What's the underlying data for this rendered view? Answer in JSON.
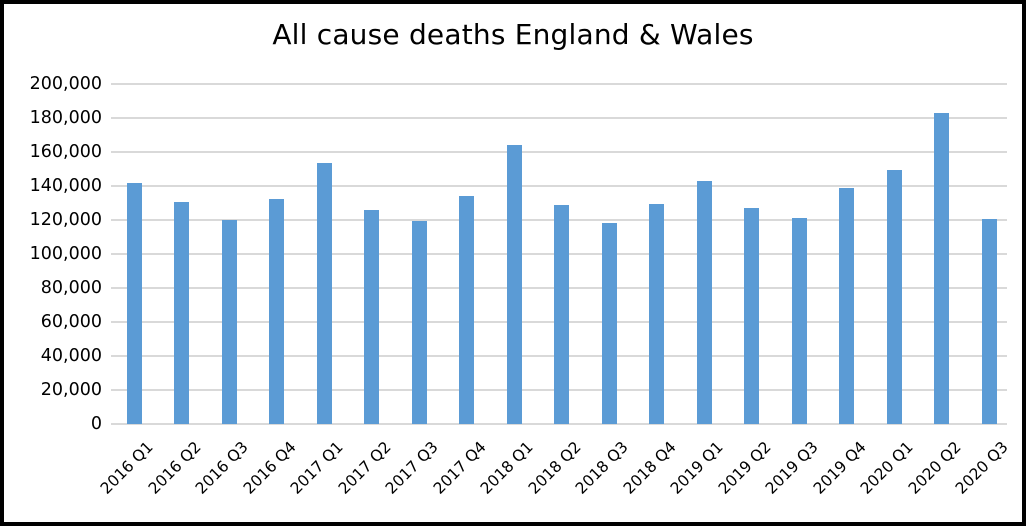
{
  "chart_data": {
    "type": "bar",
    "title": "All cause deaths England & Wales",
    "categories": [
      "2016 Q1",
      "2016 Q2",
      "2016 Q3",
      "2016 Q4",
      "2017 Q1",
      "2017 Q2",
      "2017 Q3",
      "2017 Q4",
      "2018 Q1",
      "2018 Q2",
      "2018 Q3",
      "2018 Q4",
      "2019 Q1",
      "2019 Q2",
      "2019 Q3",
      "2019 Q4",
      "2020 Q1",
      "2020 Q2",
      "2020 Q3"
    ],
    "values": [
      142000,
      130400,
      120000,
      132300,
      153700,
      126000,
      119500,
      134200,
      164200,
      128900,
      118000,
      129700,
      143200,
      126900,
      121100,
      138800,
      149700,
      182700,
      120800
    ],
    "xlabel": "",
    "ylabel": "",
    "ylim": [
      0,
      200000
    ],
    "ytick_step": 20000,
    "ytick_labels_top_to_bottom": [
      "200,000",
      "180,000",
      "160,000",
      "140,000",
      "120,000",
      "100,000",
      "80,000",
      "60,000",
      "40,000",
      "20,000",
      "0"
    ],
    "grid": "horizontal-only",
    "legend": "none",
    "bar_color": "#5b9bd5",
    "gridline_color": "#d9d9d9",
    "title_color": "#000000",
    "tick_label_color": "#000000",
    "x_tick_rotation_deg": 45
  }
}
